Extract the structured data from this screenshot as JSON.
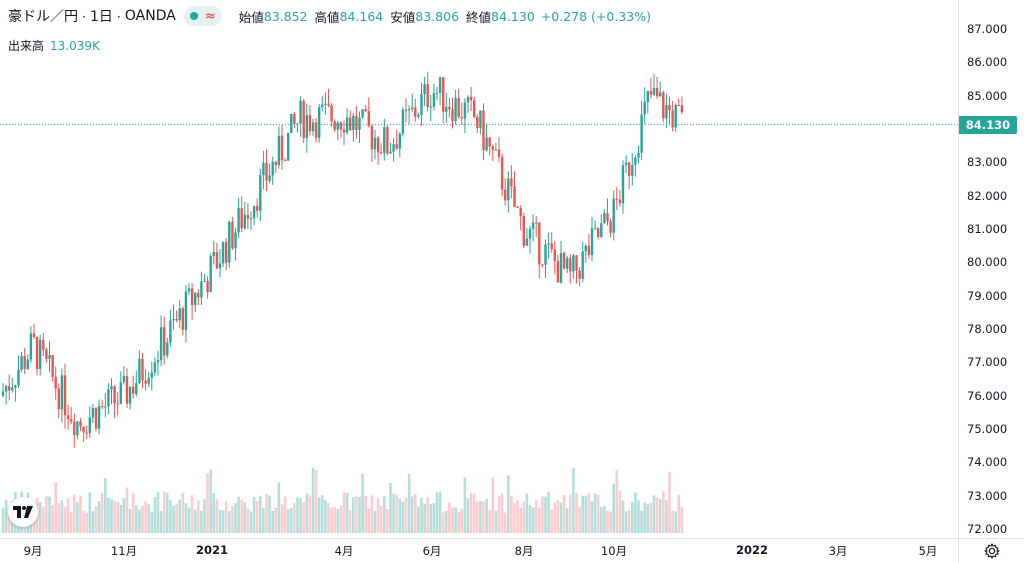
{
  "legend": {
    "symbol": "豪ドル／円",
    "interval": "1日",
    "broker": "OANDA",
    "open_label": "始値",
    "open": "83.852",
    "high_label": "高値",
    "high": "84.164",
    "low_label": "安値",
    "low": "83.806",
    "close_label": "終値",
    "close": "84.130",
    "change": "+0.278 (+0.33%)"
  },
  "volume": {
    "label": "出来高",
    "value": "13.039K"
  },
  "price_scale": {
    "ticks": [
      "87.000",
      "86.000",
      "85.000",
      "84.000",
      "83.000",
      "82.000",
      "81.000",
      "80.000",
      "79.000",
      "78.000",
      "77.000",
      "76.000",
      "75.000",
      "74.000",
      "73.000",
      "72.000"
    ],
    "last_price": "84.130"
  },
  "time_scale": {
    "ticks": [
      {
        "label": "9月",
        "year": false
      },
      {
        "label": "11月",
        "year": false
      },
      {
        "label": "2021",
        "year": true
      },
      {
        "label": "4月",
        "year": false
      },
      {
        "label": "6月",
        "year": false
      },
      {
        "label": "8月",
        "year": false
      },
      {
        "label": "10月",
        "year": false
      },
      {
        "label": "2022",
        "year": true
      },
      {
        "label": "3月",
        "year": false
      },
      {
        "label": "5月",
        "year": false
      }
    ]
  },
  "colors": {
    "up": "#26a69a",
    "down": "#ef5350",
    "up_vol": "#b2dfdb",
    "down_vol": "#fccbcd"
  },
  "icons": {
    "logo": "tradingview-logo-icon",
    "settings": "gear-icon"
  },
  "chart_data": {
    "type": "candlestick",
    "instrument": "豪ドル／円",
    "interval": "1日",
    "ylim": [
      72,
      87
    ],
    "x": [
      "2020-08",
      "2020-09",
      "2020-10",
      "2020-11",
      "2020-12",
      "2021-01",
      "2021-02",
      "2021-03",
      "2021-04",
      "2021-05",
      "2021-06",
      "2021-07",
      "2021-08",
      "2021-09",
      "2021-10",
      "2021-11"
    ],
    "close": [
      76.0,
      77.5,
      75.2,
      76.0,
      77.8,
      79.8,
      84.3,
      84.4,
      83.5,
      85.2,
      84.3,
      81.0,
      79.5,
      81.5,
      85.0,
      84.13
    ],
    "last": {
      "open": 83.852,
      "high": 84.164,
      "low": 83.806,
      "close": 84.13,
      "change": 0.278,
      "change_pct": 0.33,
      "volume": "13.039K"
    }
  }
}
